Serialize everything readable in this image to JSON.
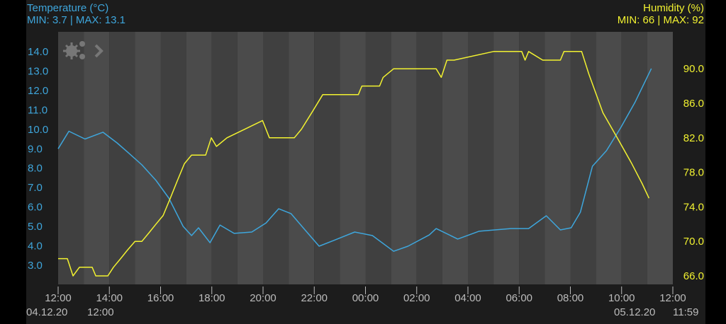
{
  "left_header": {
    "title": "Temperature (°C)",
    "minmax": "MIN: 3.7 | MAX: 13.1"
  },
  "right_header": {
    "title": "Humidity (%)",
    "minmax": "MIN: 66 | MAX: 92"
  },
  "icons": {
    "settings": "gears-icon",
    "expand": "chevron-right-icon"
  },
  "colors": {
    "temperature": "#3ea6dc",
    "humidity": "#f2f230",
    "background": "#1c1c1c",
    "stripe_a": "#404040",
    "stripe_b": "#4b4b4b",
    "axis_text": "#cccccc"
  },
  "footer": {
    "start_date": "04.12.20",
    "start_time": "12:00",
    "end_date": "05.12.20",
    "end_time": "11:59"
  },
  "chart_data": {
    "type": "line",
    "x_unit": "hours since 04.12.20 12:00",
    "x_ticks": [
      "12:00",
      "14:00",
      "16:00",
      "18:00",
      "20:00",
      "22:00",
      "00:00",
      "02:00",
      "04:00",
      "06:00",
      "08:00",
      "10:00",
      "12:00"
    ],
    "xlim": [
      0,
      24
    ],
    "left_axis": {
      "label": "Temperature (°C)",
      "ticks": [
        "14.0",
        "13.0",
        "12.0",
        "11.0",
        "10.0",
        "9.0",
        "8.0",
        "7.0",
        "6.0",
        "5.0",
        "4.0",
        "3.0"
      ],
      "ylim": [
        2.0,
        15.0
      ]
    },
    "right_axis": {
      "label": "Humidity (%)",
      "ticks": [
        "90.0",
        "86.0",
        "82.0",
        "78.0",
        "74.0",
        "70.0",
        "66.0"
      ],
      "ylim": [
        64.4,
        94.0
      ]
    },
    "grid": "alternating hourly stripes",
    "series": [
      {
        "name": "Temperature (°C)",
        "axis": "left",
        "points": [
          [
            0,
            9.0
          ],
          [
            0.42,
            9.9
          ],
          [
            1.05,
            9.5
          ],
          [
            1.75,
            9.85
          ],
          [
            2.3,
            9.3
          ],
          [
            2.71,
            8.83
          ],
          [
            3.27,
            8.17
          ],
          [
            3.82,
            7.37
          ],
          [
            4.32,
            6.46
          ],
          [
            4.88,
            5.0
          ],
          [
            5.21,
            4.53
          ],
          [
            5.48,
            4.93
          ],
          [
            5.93,
            4.16
          ],
          [
            6.32,
            5.07
          ],
          [
            6.87,
            4.64
          ],
          [
            7.56,
            4.71
          ],
          [
            8.12,
            5.18
          ],
          [
            8.61,
            5.91
          ],
          [
            9.09,
            5.66
          ],
          [
            9.64,
            4.82
          ],
          [
            10.19,
            3.98
          ],
          [
            10.75,
            4.27
          ],
          [
            11.58,
            4.71
          ],
          [
            12.27,
            4.53
          ],
          [
            13.1,
            3.72
          ],
          [
            13.66,
            3.98
          ],
          [
            14.49,
            4.56
          ],
          [
            14.76,
            4.89
          ],
          [
            15.6,
            4.35
          ],
          [
            16.43,
            4.75
          ],
          [
            17.67,
            4.89
          ],
          [
            18.37,
            4.89
          ],
          [
            19.06,
            5.55
          ],
          [
            19.61,
            4.82
          ],
          [
            20.03,
            4.93
          ],
          [
            20.39,
            5.73
          ],
          [
            20.86,
            8.1
          ],
          [
            21.41,
            8.9
          ],
          [
            21.97,
            10.1
          ],
          [
            22.52,
            11.38
          ],
          [
            23.16,
            13.13
          ]
        ]
      },
      {
        "name": "Humidity (%)",
        "axis": "right",
        "points": [
          [
            0,
            68
          ],
          [
            0.36,
            68
          ],
          [
            0.58,
            66
          ],
          [
            0.83,
            67
          ],
          [
            1.33,
            67
          ],
          [
            1.47,
            66
          ],
          [
            1.94,
            66
          ],
          [
            2.16,
            67
          ],
          [
            2.44,
            68
          ],
          [
            2.71,
            69
          ],
          [
            3.0,
            70
          ],
          [
            3.27,
            70
          ],
          [
            3.55,
            71
          ],
          [
            3.82,
            72
          ],
          [
            4.1,
            73
          ],
          [
            4.38,
            75
          ],
          [
            4.65,
            77
          ],
          [
            4.93,
            79
          ],
          [
            5.21,
            80
          ],
          [
            5.76,
            80
          ],
          [
            5.98,
            82
          ],
          [
            6.18,
            81
          ],
          [
            6.59,
            82
          ],
          [
            7.29,
            83
          ],
          [
            7.98,
            84
          ],
          [
            8.25,
            82
          ],
          [
            9.22,
            82
          ],
          [
            9.5,
            83
          ],
          [
            9.92,
            85
          ],
          [
            10.33,
            87
          ],
          [
            11.72,
            87
          ],
          [
            11.86,
            88
          ],
          [
            12.55,
            88
          ],
          [
            12.69,
            89
          ],
          [
            13.1,
            90
          ],
          [
            14.76,
            90
          ],
          [
            14.96,
            89
          ],
          [
            15.18,
            91
          ],
          [
            15.46,
            91
          ],
          [
            17.0,
            92
          ],
          [
            18.1,
            92
          ],
          [
            18.23,
            91
          ],
          [
            18.37,
            92
          ],
          [
            18.92,
            91
          ],
          [
            19.61,
            91
          ],
          [
            19.75,
            92
          ],
          [
            20.44,
            92
          ],
          [
            20.72,
            89.4
          ],
          [
            21.27,
            84.9
          ],
          [
            21.83,
            82
          ],
          [
            22.38,
            79.1
          ],
          [
            22.8,
            76.7
          ],
          [
            23.07,
            75
          ]
        ]
      }
    ]
  }
}
